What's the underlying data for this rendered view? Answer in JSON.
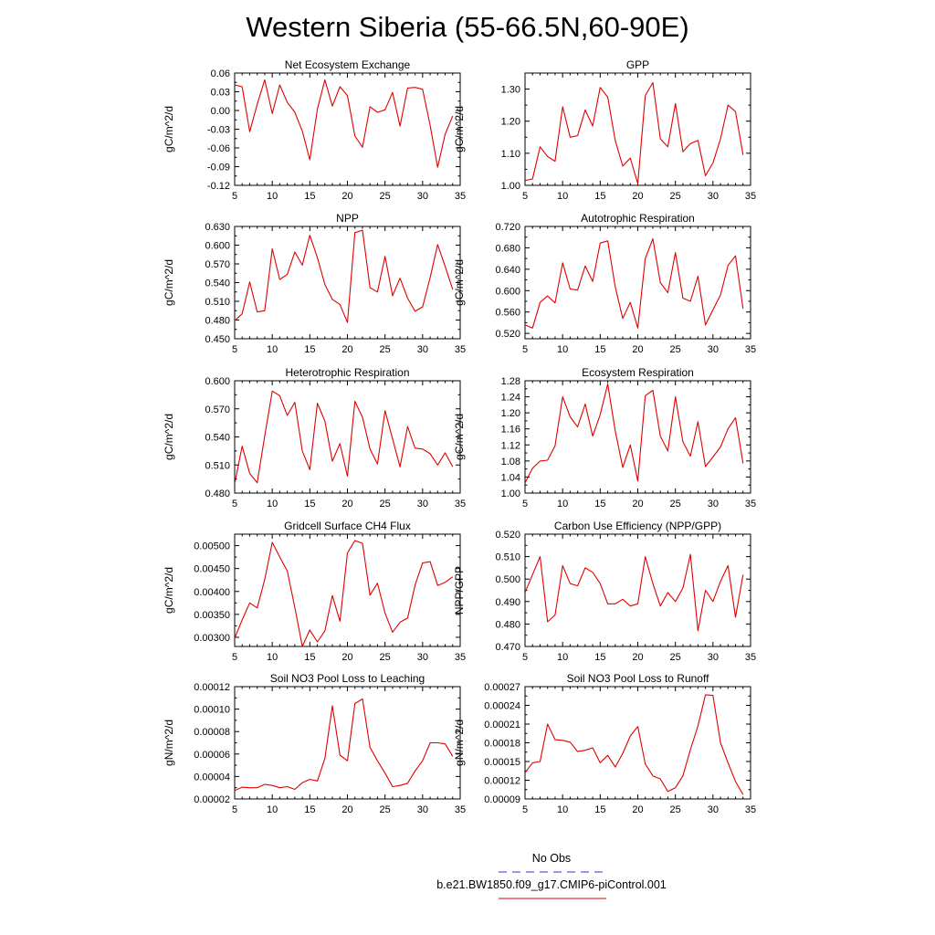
{
  "title": "Western Siberia (55-66.5N,60-90E)",
  "legend": [
    {
      "label": "No Obs",
      "color": "#3333cc",
      "style": "dashed"
    },
    {
      "label": "b.e21.BW1850.f09_g17.CMIP6-piControl.001",
      "color": "#e00000",
      "style": "solid"
    }
  ],
  "line_color": "#e00000",
  "chart_data": [
    {
      "type": "line",
      "title": "Net Ecosystem Exchange",
      "ylabel": "gC/m^2/d",
      "xlim": [
        5,
        35
      ],
      "xticks": [
        5,
        10,
        15,
        20,
        25,
        30,
        35
      ],
      "ylim": [
        -0.12,
        0.06
      ],
      "yticks": [
        -0.12,
        -0.09,
        -0.06,
        -0.03,
        0.0,
        0.03,
        0.06
      ],
      "ytick_labels": [
        "-0.12",
        "-0.09",
        "-0.06",
        "-0.03",
        "0.00",
        "0.03",
        "0.06"
      ],
      "x": [
        5,
        6,
        7,
        8,
        9,
        10,
        11,
        12,
        13,
        14,
        15,
        16,
        17,
        18,
        19,
        20,
        21,
        22,
        23,
        24,
        25,
        26,
        27,
        28,
        29,
        30,
        31,
        32,
        33,
        34
      ],
      "y": [
        0.041,
        0.038,
        -0.034,
        0.01,
        0.049,
        -0.005,
        0.041,
        0.013,
        -0.003,
        -0.033,
        -0.079,
        0.002,
        0.049,
        0.007,
        0.038,
        0.024,
        -0.041,
        -0.059,
        0.006,
        -0.003,
        0.001,
        0.029,
        -0.025,
        0.036,
        0.037,
        0.034,
        -0.024,
        -0.091,
        -0.038,
        -0.009
      ]
    },
    {
      "type": "line",
      "title": "GPP",
      "ylabel": "gC/m^2/d",
      "xlim": [
        5,
        35
      ],
      "xticks": [
        5,
        10,
        15,
        20,
        25,
        30,
        35
      ],
      "ylim": [
        1.0,
        1.35
      ],
      "yticks": [
        1.0,
        1.1,
        1.2,
        1.3
      ],
      "ytick_labels": [
        "1.00",
        "1.10",
        "1.20",
        "1.30"
      ],
      "x": [
        5,
        6,
        7,
        8,
        9,
        10,
        11,
        12,
        13,
        14,
        15,
        16,
        17,
        18,
        19,
        20,
        21,
        22,
        23,
        24,
        25,
        26,
        27,
        28,
        29,
        30,
        31,
        32,
        33,
        34
      ],
      "y": [
        1.015,
        1.02,
        1.12,
        1.09,
        1.075,
        1.245,
        1.15,
        1.155,
        1.235,
        1.185,
        1.305,
        1.275,
        1.14,
        1.06,
        1.085,
        1.005,
        1.28,
        1.32,
        1.145,
        1.12,
        1.255,
        1.105,
        1.13,
        1.14,
        1.03,
        1.07,
        1.145,
        1.25,
        1.23,
        1.095
      ]
    },
    {
      "type": "line",
      "title": "NPP",
      "ylabel": "gC/m^2/d",
      "xlim": [
        5,
        35
      ],
      "xticks": [
        5,
        10,
        15,
        20,
        25,
        30,
        35
      ],
      "ylim": [
        0.45,
        0.63
      ],
      "yticks": [
        0.45,
        0.48,
        0.51,
        0.54,
        0.57,
        0.6,
        0.63
      ],
      "ytick_labels": [
        "0.450",
        "0.480",
        "0.510",
        "0.540",
        "0.570",
        "0.600",
        "0.630"
      ],
      "x": [
        5,
        6,
        7,
        8,
        9,
        10,
        11,
        12,
        13,
        14,
        15,
        16,
        17,
        18,
        19,
        20,
        21,
        22,
        23,
        24,
        25,
        26,
        27,
        28,
        29,
        30,
        31,
        32,
        33,
        34
      ],
      "y": [
        0.479,
        0.49,
        0.541,
        0.493,
        0.495,
        0.594,
        0.545,
        0.553,
        0.589,
        0.568,
        0.616,
        0.58,
        0.537,
        0.513,
        0.505,
        0.476,
        0.62,
        0.624,
        0.532,
        0.525,
        0.582,
        0.519,
        0.547,
        0.515,
        0.494,
        0.501,
        0.548,
        0.601,
        0.566,
        0.529
      ]
    },
    {
      "type": "line",
      "title": "Autotrophic Respiration",
      "ylabel": "gC/m^2/d",
      "xlim": [
        5,
        35
      ],
      "xticks": [
        5,
        10,
        15,
        20,
        25,
        30,
        35
      ],
      "ylim": [
        0.51,
        0.72
      ],
      "yticks": [
        0.52,
        0.56,
        0.6,
        0.64,
        0.68,
        0.72
      ],
      "ytick_labels": [
        "0.520",
        "0.560",
        "0.600",
        "0.640",
        "0.680",
        "0.720"
      ],
      "x": [
        5,
        6,
        7,
        8,
        9,
        10,
        11,
        12,
        13,
        14,
        15,
        16,
        17,
        18,
        19,
        20,
        21,
        22,
        23,
        24,
        25,
        26,
        27,
        28,
        29,
        30,
        31,
        32,
        33,
        34
      ],
      "y": [
        0.536,
        0.53,
        0.578,
        0.59,
        0.577,
        0.652,
        0.603,
        0.601,
        0.646,
        0.617,
        0.689,
        0.693,
        0.607,
        0.548,
        0.578,
        0.53,
        0.66,
        0.697,
        0.615,
        0.596,
        0.671,
        0.586,
        0.58,
        0.627,
        0.536,
        0.564,
        0.592,
        0.647,
        0.665,
        0.566
      ]
    },
    {
      "type": "line",
      "title": "Heterotrophic Respiration",
      "ylabel": "gC/m^2/d",
      "xlim": [
        5,
        35
      ],
      "xticks": [
        5,
        10,
        15,
        20,
        25,
        30,
        35
      ],
      "ylim": [
        0.48,
        0.6
      ],
      "yticks": [
        0.48,
        0.51,
        0.54,
        0.57,
        0.6
      ],
      "ytick_labels": [
        "0.480",
        "0.510",
        "0.540",
        "0.570",
        "0.600"
      ],
      "x": [
        5,
        6,
        7,
        8,
        9,
        10,
        11,
        12,
        13,
        14,
        15,
        16,
        17,
        18,
        19,
        20,
        21,
        22,
        23,
        24,
        25,
        26,
        27,
        28,
        29,
        30,
        31,
        32,
        33,
        34
      ],
      "y": [
        0.49,
        0.53,
        0.501,
        0.491,
        0.541,
        0.589,
        0.584,
        0.563,
        0.577,
        0.525,
        0.505,
        0.576,
        0.557,
        0.514,
        0.533,
        0.498,
        0.578,
        0.561,
        0.527,
        0.511,
        0.568,
        0.538,
        0.508,
        0.551,
        0.528,
        0.527,
        0.522,
        0.51,
        0.523,
        0.508
      ]
    },
    {
      "type": "line",
      "title": "Ecosystem Respiration",
      "ylabel": "gC/m^2/d",
      "xlim": [
        5,
        35
      ],
      "xticks": [
        5,
        10,
        15,
        20,
        25,
        30,
        35
      ],
      "ylim": [
        1.0,
        1.28
      ],
      "yticks": [
        1.0,
        1.04,
        1.08,
        1.12,
        1.16,
        1.2,
        1.24,
        1.28
      ],
      "ytick_labels": [
        "1.00",
        "1.04",
        "1.08",
        "1.12",
        "1.16",
        "1.20",
        "1.24",
        "1.28"
      ],
      "x": [
        5,
        6,
        7,
        8,
        9,
        10,
        11,
        12,
        13,
        14,
        15,
        16,
        17,
        18,
        19,
        20,
        21,
        22,
        23,
        24,
        25,
        26,
        27,
        28,
        29,
        30,
        31,
        32,
        33,
        34
      ],
      "y": [
        1.025,
        1.062,
        1.08,
        1.082,
        1.118,
        1.24,
        1.19,
        1.165,
        1.222,
        1.142,
        1.195,
        1.272,
        1.155,
        1.064,
        1.12,
        1.03,
        1.243,
        1.256,
        1.142,
        1.105,
        1.24,
        1.128,
        1.092,
        1.178,
        1.066,
        1.09,
        1.115,
        1.16,
        1.188,
        1.074
      ]
    },
    {
      "type": "line",
      "title": "Gridcell Surface CH4 Flux",
      "ylabel": "gC/m^2/d",
      "xlim": [
        5,
        35
      ],
      "xticks": [
        5,
        10,
        15,
        20,
        25,
        30,
        35
      ],
      "ylim": [
        0.0028,
        0.00525
      ],
      "yticks": [
        0.003,
        0.0035,
        0.004,
        0.0045,
        0.005
      ],
      "ytick_labels": [
        "0.00300",
        "0.00350",
        "0.00400",
        "0.00450",
        "0.00500"
      ],
      "x": [
        5,
        6,
        7,
        8,
        9,
        10,
        11,
        12,
        13,
        14,
        15,
        16,
        17,
        18,
        19,
        20,
        21,
        22,
        23,
        24,
        25,
        26,
        27,
        28,
        29,
        30,
        31,
        32,
        33,
        34
      ],
      "y": [
        0.00298,
        0.00338,
        0.00375,
        0.00364,
        0.00426,
        0.00507,
        0.00475,
        0.00445,
        0.00365,
        0.0028,
        0.00316,
        0.0029,
        0.00314,
        0.00391,
        0.00335,
        0.00484,
        0.00511,
        0.00505,
        0.00392,
        0.00418,
        0.00353,
        0.00311,
        0.00333,
        0.00342,
        0.00414,
        0.00462,
        0.00465,
        0.00413,
        0.0042,
        0.00432
      ]
    },
    {
      "type": "line",
      "title": "Carbon Use Efficiency (NPP/GPP)",
      "ylabel": "NPP/GPP",
      "xlim": [
        5,
        35
      ],
      "xticks": [
        5,
        10,
        15,
        20,
        25,
        30,
        35
      ],
      "ylim": [
        0.47,
        0.52
      ],
      "yticks": [
        0.47,
        0.48,
        0.49,
        0.5,
        0.51,
        0.52
      ],
      "ytick_labels": [
        "0.470",
        "0.480",
        "0.490",
        "0.500",
        "0.510",
        "0.520"
      ],
      "x": [
        5,
        6,
        7,
        8,
        9,
        10,
        11,
        12,
        13,
        14,
        15,
        16,
        17,
        18,
        19,
        20,
        21,
        22,
        23,
        24,
        25,
        26,
        27,
        28,
        29,
        30,
        31,
        32,
        33,
        34
      ],
      "y": [
        0.494,
        0.502,
        0.51,
        0.481,
        0.484,
        0.506,
        0.498,
        0.497,
        0.505,
        0.503,
        0.498,
        0.489,
        0.489,
        0.491,
        0.488,
        0.489,
        0.51,
        0.498,
        0.488,
        0.494,
        0.49,
        0.496,
        0.511,
        0.477,
        0.495,
        0.49,
        0.499,
        0.506,
        0.483,
        0.502
      ]
    },
    {
      "type": "line",
      "title": "Soil NO3 Pool Loss to Leaching",
      "ylabel": "gN/m^2/d",
      "xlim": [
        5,
        35
      ],
      "xticks": [
        5,
        10,
        15,
        20,
        25,
        30,
        35
      ],
      "ylim": [
        2e-05,
        0.00012
      ],
      "yticks": [
        2e-05,
        4e-05,
        6e-05,
        8e-05,
        0.0001,
        0.00012
      ],
      "ytick_labels": [
        "0.00002",
        "0.00004",
        "0.00006",
        "0.00008",
        "0.00010",
        "0.00012"
      ],
      "x": [
        5,
        6,
        7,
        8,
        9,
        10,
        11,
        12,
        13,
        14,
        15,
        16,
        17,
        18,
        19,
        20,
        21,
        22,
        23,
        24,
        25,
        26,
        27,
        28,
        29,
        30,
        31,
        32,
        33,
        34
      ],
      "y": [
        2.75e-05,
        3.05e-05,
        3e-05,
        3e-05,
        3.3e-05,
        3.2e-05,
        3e-05,
        3.1e-05,
        2.85e-05,
        3.45e-05,
        3.75e-05,
        3.6e-05,
        5.6e-05,
        0.000103,
        5.9e-05,
        5.4e-05,
        0.000105,
        0.000109,
        6.6e-05,
        5.4e-05,
        4.3e-05,
        3.1e-05,
        3.2e-05,
        3.4e-05,
        4.5e-05,
        5.4e-05,
        7e-05,
        7e-05,
        6.9e-05,
        5.8e-05
      ]
    },
    {
      "type": "line",
      "title": "Soil NO3 Pool Loss to Runoff",
      "ylabel": "gN/m^2/d",
      "xlim": [
        5,
        35
      ],
      "xticks": [
        5,
        10,
        15,
        20,
        25,
        30,
        35
      ],
      "ylim": [
        9e-05,
        0.00027
      ],
      "yticks": [
        9e-05,
        0.00012,
        0.00015,
        0.00018,
        0.00021,
        0.00024,
        0.00027
      ],
      "ytick_labels": [
        "0.00009",
        "0.00012",
        "0.00015",
        "0.00018",
        "0.00021",
        "0.00024",
        "0.00027"
      ],
      "x": [
        5,
        6,
        7,
        8,
        9,
        10,
        11,
        12,
        13,
        14,
        15,
        16,
        17,
        18,
        19,
        20,
        21,
        22,
        23,
        24,
        25,
        26,
        27,
        28,
        29,
        30,
        31,
        32,
        33,
        34
      ],
      "y": [
        0.000132,
        0.000148,
        0.00015,
        0.00021,
        0.000185,
        0.000184,
        0.000181,
        0.000166,
        0.000168,
        0.000172,
        0.000148,
        0.00016,
        0.000141,
        0.000163,
        0.000191,
        0.000206,
        0.000146,
        0.000127,
        0.000122,
        0.000102,
        0.000108,
        0.000127,
        0.000169,
        0.000207,
        0.000257,
        0.000256,
        0.00018,
        0.000148,
        0.000118,
        9.7e-05
      ]
    }
  ]
}
